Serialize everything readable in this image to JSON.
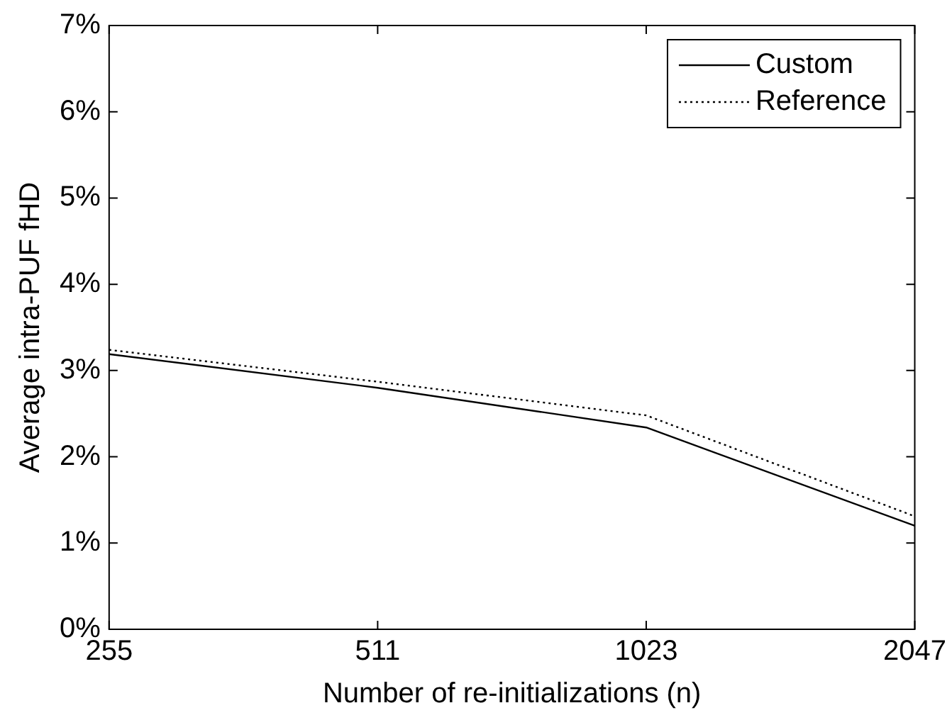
{
  "chart_data": {
    "type": "line",
    "xlabel": "Number of re-initializations (n)",
    "ylabel": "Average intra-PUF fHD",
    "categories": [
      "255",
      "511",
      "1023",
      "2047"
    ],
    "series": [
      {
        "name": "Custom",
        "color": "#000000",
        "values": [
          3.19,
          2.8,
          2.34,
          1.2
        ],
        "line_style": "solid"
      },
      {
        "name": "Reference",
        "color": "#000000",
        "values": [
          3.24,
          2.87,
          2.48,
          1.31
        ],
        "line_style": "dotted"
      }
    ],
    "ylim": [
      0,
      7
    ],
    "yticks": [
      {
        "value": 0,
        "label": "0%"
      },
      {
        "value": 1,
        "label": "1%"
      },
      {
        "value": 2,
        "label": "2%"
      },
      {
        "value": 3,
        "label": "3%"
      },
      {
        "value": 4,
        "label": "4%"
      },
      {
        "value": 5,
        "label": "5%"
      },
      {
        "value": 6,
        "label": "6%"
      },
      {
        "value": 7,
        "label": "7%"
      }
    ],
    "grid": false,
    "legend": "top right",
    "marker": "none"
  }
}
